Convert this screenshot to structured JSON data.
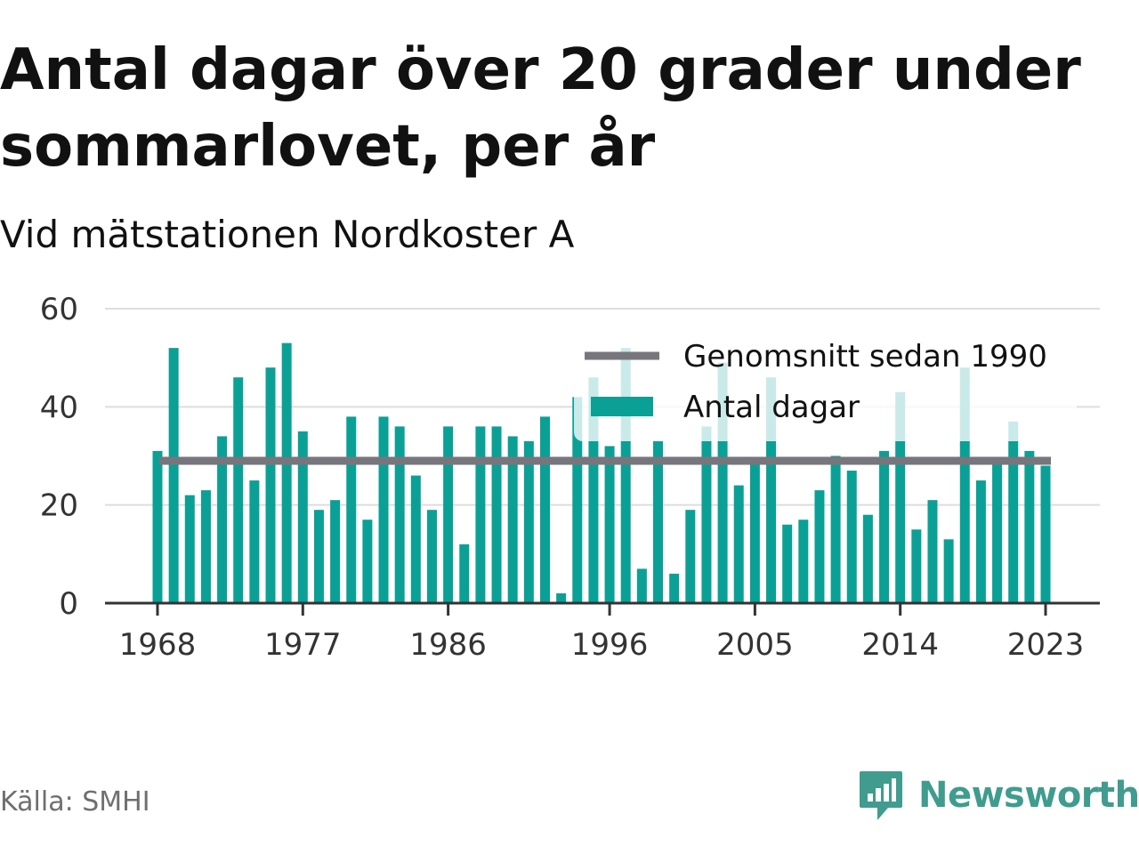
{
  "title": "Antal dagar över 20 grader under sommarlovet, per år",
  "subtitle": "Vid mätstationen Nordkoster A",
  "source": "Källa: SMHI",
  "brand": {
    "name": "Newsworthy",
    "icon": "newsworthy-logo-icon",
    "color": "#3f9c8e"
  },
  "colors": {
    "bar": "#0aa096",
    "average_line": "#77767c",
    "grid": "#dddddd",
    "axis": "#333333"
  },
  "chart_data": {
    "type": "bar",
    "ylim": [
      0,
      60
    ],
    "y_ticks": [
      0,
      20,
      40,
      60
    ],
    "x_ticks": [
      1968,
      1977,
      1986,
      1996,
      2005,
      2014,
      2023
    ],
    "grid": true,
    "legend_position": "top-right",
    "categories": [
      1968,
      1969,
      1970,
      1971,
      1972,
      1973,
      1974,
      1975,
      1976,
      1977,
      1978,
      1979,
      1980,
      1981,
      1982,
      1983,
      1984,
      1985,
      1986,
      1987,
      1988,
      1989,
      1990,
      1991,
      1992,
      1993,
      1994,
      1995,
      1996,
      1997,
      1998,
      1999,
      2000,
      2001,
      2002,
      2003,
      2004,
      2005,
      2006,
      2007,
      2008,
      2009,
      2010,
      2011,
      2012,
      2013,
      2014,
      2015,
      2016,
      2017,
      2018,
      2019,
      2020,
      2021,
      2022,
      2023
    ],
    "series": [
      {
        "name": "Antal dagar",
        "type": "bar",
        "values": [
          31,
          52,
          22,
          23,
          34,
          46,
          25,
          48,
          53,
          35,
          19,
          21,
          38,
          17,
          38,
          36,
          26,
          19,
          36,
          12,
          36,
          36,
          34,
          33,
          38,
          2,
          42,
          46,
          32,
          52,
          7,
          33,
          6,
          19,
          36,
          49,
          24,
          29,
          46,
          16,
          17,
          23,
          30,
          27,
          18,
          31,
          43,
          15,
          21,
          13,
          48,
          25,
          29,
          37,
          31,
          28
        ]
      },
      {
        "name": "Genomsnitt sedan 1990",
        "type": "line",
        "value": 29,
        "from": 1968,
        "to": 2023
      }
    ]
  }
}
